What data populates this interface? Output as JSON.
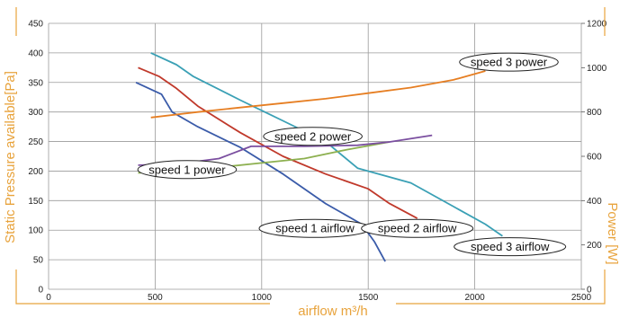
{
  "chart_data": {
    "type": "line",
    "title": "",
    "xlabel": "airflow m³/h",
    "ylabel": "Static Pressure available[Pa]",
    "y2label": "Power [W]",
    "xlim": [
      0,
      2500
    ],
    "ylim": [
      0,
      450
    ],
    "y2lim": [
      0,
      1200
    ],
    "xticks": [
      0,
      500,
      1000,
      1500,
      2000,
      2500
    ],
    "yticks": [
      0,
      50,
      100,
      150,
      200,
      250,
      300,
      350,
      400,
      450
    ],
    "y2ticks": [
      0,
      200,
      400,
      600,
      800,
      1000,
      1200
    ],
    "grid": true,
    "label_color": "#E8A33C",
    "series": [
      {
        "name": "speed 1 airflow",
        "axis": "left",
        "color": "#3A5BA9",
        "x": [
          410,
          530,
          580,
          700,
          900,
          1100,
          1300,
          1470,
          1530,
          1580
        ],
        "y": [
          350,
          330,
          300,
          275,
          240,
          195,
          145,
          110,
          80,
          47
        ]
      },
      {
        "name": "speed 2 airflow",
        "axis": "left",
        "color": "#C0392B",
        "x": [
          420,
          520,
          600,
          700,
          900,
          1100,
          1300,
          1500,
          1600,
          1730
        ],
        "y": [
          375,
          360,
          340,
          310,
          265,
          225,
          195,
          170,
          145,
          120
        ]
      },
      {
        "name": "speed 3 airflow",
        "axis": "left",
        "color": "#3AA0B5",
        "x": [
          480,
          600,
          680,
          900,
          1100,
          1300,
          1450,
          1700,
          1900,
          2050,
          2130
        ],
        "y": [
          400,
          380,
          360,
          320,
          285,
          250,
          205,
          180,
          140,
          110,
          90
        ]
      },
      {
        "name": "speed 1 power",
        "axis": "right",
        "color": "#8DB050",
        "x": [
          420,
          600,
          800,
          1000,
          1200,
          1400,
          1600
        ],
        "y": [
          525,
          535,
          550,
          570,
          590,
          630,
          665
        ]
      },
      {
        "name": "speed 2 power",
        "axis": "right",
        "color": "#7B4FA0",
        "x": [
          420,
          600,
          800,
          950,
          1200,
          1450,
          1600,
          1800
        ],
        "y": [
          560,
          565,
          590,
          645,
          645,
          650,
          665,
          695
        ]
      },
      {
        "name": "speed 3 power",
        "axis": "right",
        "color": "#E67E22",
        "x": [
          480,
          700,
          900,
          1100,
          1300,
          1500,
          1700,
          1900,
          2050
        ],
        "y": [
          775,
          800,
          820,
          840,
          860,
          885,
          910,
          945,
          985
        ]
      }
    ],
    "annotations": [
      {
        "text": "speed 3 power",
        "x": 2160,
        "y": 1025
      },
      {
        "text": "speed 2 power",
        "x": 1240,
        "y": 690
      },
      {
        "text": "speed 1 power",
        "x": 650,
        "y": 540
      },
      {
        "text": "speed 1 airflow",
        "x": 1250,
        "y": 103
      },
      {
        "text": "speed 2 airflow",
        "x": 1730,
        "y": 103
      },
      {
        "text": "speed 3 airflow",
        "x": 2165,
        "y": 72
      }
    ]
  }
}
